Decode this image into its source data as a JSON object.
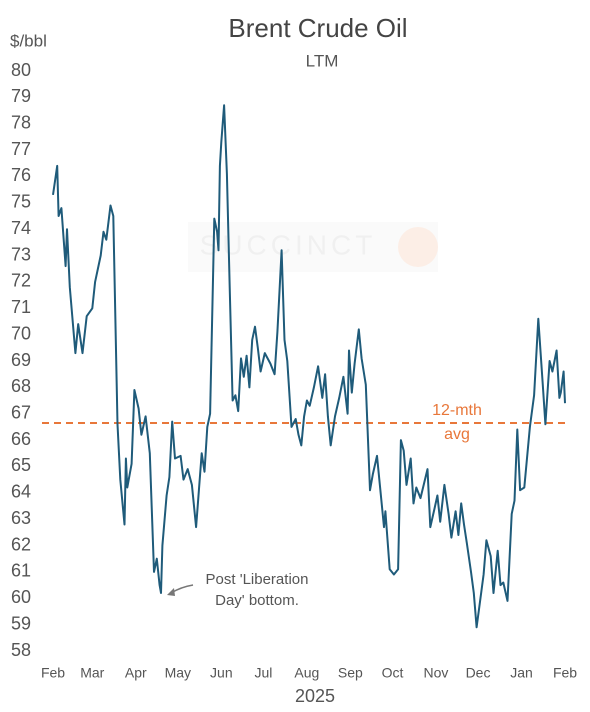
{
  "chart_data": {
    "type": "line",
    "title": "Brent Crude Oil",
    "subtitle": "LTM",
    "y_label": "$/bbl",
    "x_label": "2025",
    "watermark": "SUCCINCT",
    "color": "#1f5b7a",
    "xlim": [
      0,
      365
    ],
    "xticks": [
      {
        "value": 0,
        "label": "Feb"
      },
      {
        "value": 28,
        "label": "Mar"
      },
      {
        "value": 59,
        "label": "Apr"
      },
      {
        "value": 89,
        "label": "May"
      },
      {
        "value": 120,
        "label": "Jun"
      },
      {
        "value": 150,
        "label": "Jul"
      },
      {
        "value": 181,
        "label": "Aug"
      },
      {
        "value": 212,
        "label": "Sep"
      },
      {
        "value": 242,
        "label": "Oct"
      },
      {
        "value": 273,
        "label": "Nov"
      },
      {
        "value": 303,
        "label": "Dec"
      },
      {
        "value": 334,
        "label": "Jan"
      },
      {
        "value": 365,
        "label": "Feb"
      }
    ],
    "ylim": [
      58,
      80
    ],
    "yticks": [
      58,
      59,
      60,
      61,
      62,
      63,
      64,
      65,
      66,
      67,
      68,
      69,
      70,
      71,
      72,
      73,
      74,
      75,
      76,
      77,
      78,
      79,
      80
    ],
    "x": [
      0,
      3,
      4,
      6,
      9,
      10,
      12,
      16,
      18,
      21,
      24,
      28,
      30,
      34,
      36,
      38,
      41,
      43,
      46,
      48,
      51,
      52,
      53,
      56,
      58,
      61,
      63,
      66,
      69,
      72,
      74,
      76,
      77,
      78,
      81,
      83,
      85,
      87,
      91,
      93,
      96,
      99,
      102,
      104,
      106,
      108,
      110,
      112,
      115,
      117,
      118,
      119,
      120,
      122,
      124,
      126,
      128,
      130,
      132,
      134,
      136,
      138,
      140,
      142,
      144,
      146,
      148,
      151,
      155,
      158,
      160,
      163,
      165,
      167,
      170,
      173,
      175,
      177,
      179,
      181,
      183,
      186,
      189,
      192,
      194,
      196,
      198,
      201,
      204,
      207,
      210,
      211,
      213,
      215,
      218,
      220,
      223,
      226,
      228,
      231,
      236,
      237,
      240,
      243,
      246,
      248,
      250,
      252,
      255,
      257,
      259,
      262,
      267,
      269,
      272,
      274,
      276,
      279,
      282,
      284,
      287,
      289,
      291,
      293,
      295,
      298,
      300,
      302,
      304,
      307,
      309,
      312,
      314,
      317,
      319,
      321,
      324,
      327,
      329,
      331,
      333,
      336,
      340,
      343,
      346,
      349,
      351,
      354,
      356,
      359,
      361,
      362,
      364,
      365
    ],
    "values": [
      75.3,
      76.4,
      74.5,
      74.8,
      72.6,
      74.0,
      71.8,
      69.3,
      70.4,
      69.3,
      70.7,
      71.0,
      72.0,
      73.0,
      73.9,
      73.6,
      74.9,
      74.5,
      66.6,
      64.5,
      62.8,
      65.3,
      64.2,
      65.1,
      67.9,
      67.2,
      66.2,
      66.9,
      65.5,
      61.0,
      61.5,
      60.5,
      60.2,
      62.0,
      63.9,
      64.6,
      66.7,
      65.3,
      65.4,
      64.5,
      64.9,
      64.3,
      62.7,
      64.1,
      65.5,
      64.8,
      66.5,
      67.0,
      74.4,
      73.9,
      73.2,
      76.4,
      77.3,
      78.7,
      76.1,
      71.8,
      67.5,
      67.7,
      67.1,
      69.1,
      68.4,
      69.2,
      68.0,
      69.8,
      70.3,
      69.5,
      68.6,
      69.3,
      68.9,
      68.5,
      70.1,
      73.2,
      69.8,
      69.0,
      66.5,
      66.8,
      66.2,
      65.8,
      66.9,
      67.5,
      67.3,
      68.0,
      68.8,
      67.6,
      68.5,
      66.9,
      65.8,
      66.9,
      67.6,
      68.4,
      67.0,
      69.4,
      67.8,
      68.9,
      70.2,
      69.1,
      68.1,
      64.1,
      64.7,
      65.4,
      62.7,
      63.3,
      61.1,
      60.9,
      61.1,
      66.0,
      65.6,
      64.3,
      65.3,
      63.6,
      64.2,
      63.8,
      64.9,
      62.7,
      63.4,
      63.9,
      62.9,
      64.3,
      63.2,
      62.3,
      63.3,
      62.4,
      63.6,
      62.8,
      62.1,
      61.0,
      60.2,
      58.9,
      59.7,
      60.9,
      62.2,
      61.6,
      60.2,
      61.8,
      60.5,
      60.6,
      59.9,
      63.2,
      63.7,
      66.4,
      64.1,
      64.2,
      66.5,
      67.7,
      70.6,
      68.2,
      66.6,
      69.0,
      68.6,
      69.4,
      67.6,
      67.8,
      68.6,
      67.4
    ],
    "reference_line": {
      "value": 66.65,
      "color": "#e8773a",
      "label": [
        "12-mth",
        "avg"
      ]
    },
    "annotation": {
      "text": [
        "Post 'Liberation",
        "Day' bottom."
      ],
      "x": 77,
      "y": 60.2
    }
  }
}
